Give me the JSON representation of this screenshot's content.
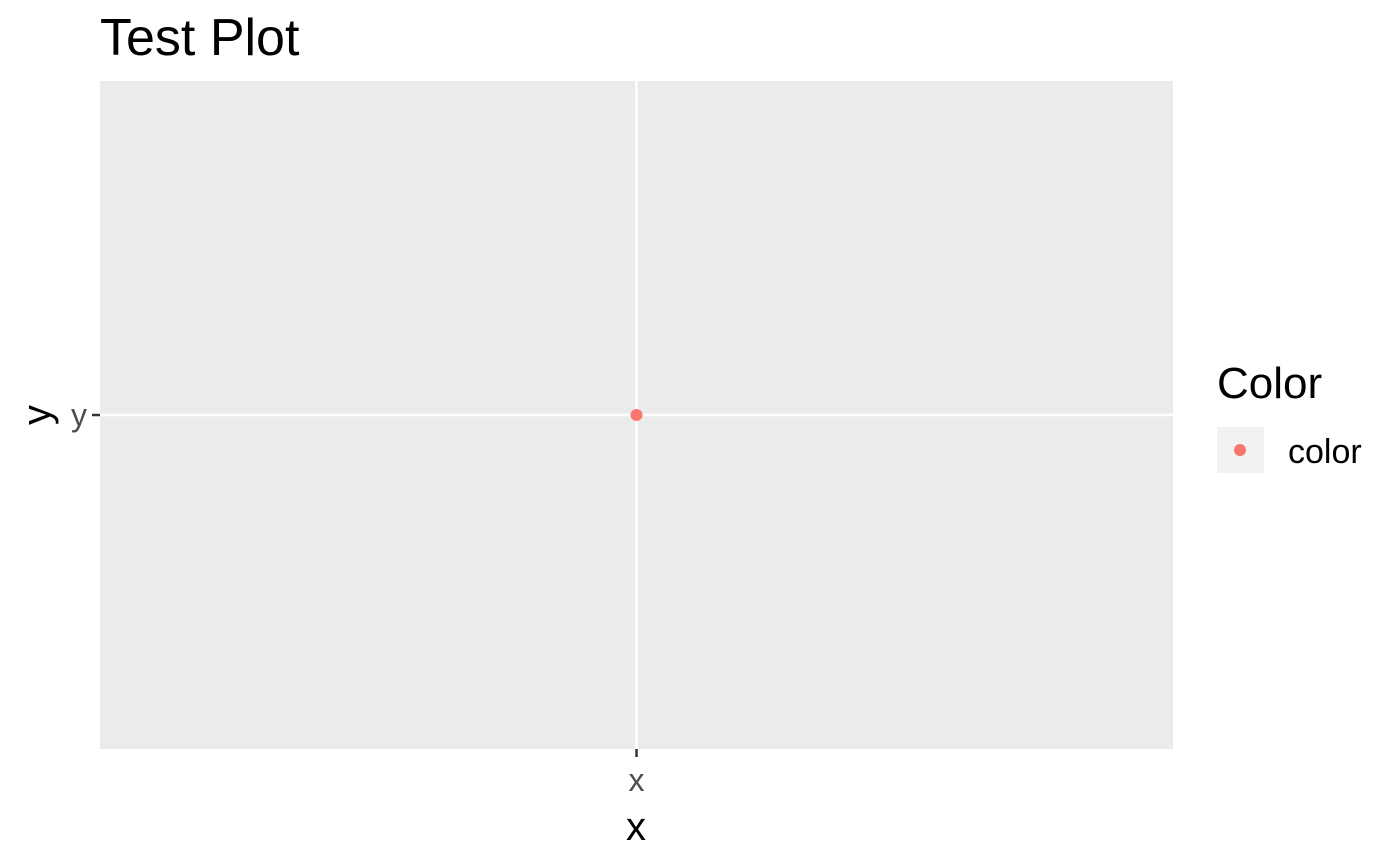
{
  "chart_data": {
    "type": "scatter",
    "title": "Test Plot",
    "xlabel": "x",
    "ylabel": "y",
    "x_categories": [
      "x"
    ],
    "y_categories": [
      "y"
    ],
    "grid": true,
    "legend": {
      "title": "Color",
      "placement": "right",
      "entries": [
        {
          "label": "color",
          "color": "#F8766D"
        }
      ]
    },
    "series": [
      {
        "name": "color",
        "color": "#F8766D",
        "points": [
          {
            "x": "x",
            "y": "y"
          }
        ]
      }
    ]
  },
  "colors": {
    "panel_background": "#EBEBEB",
    "grid": "#FFFFFF",
    "tick": "#333333",
    "legend_key_background": "#F2F2F2"
  }
}
